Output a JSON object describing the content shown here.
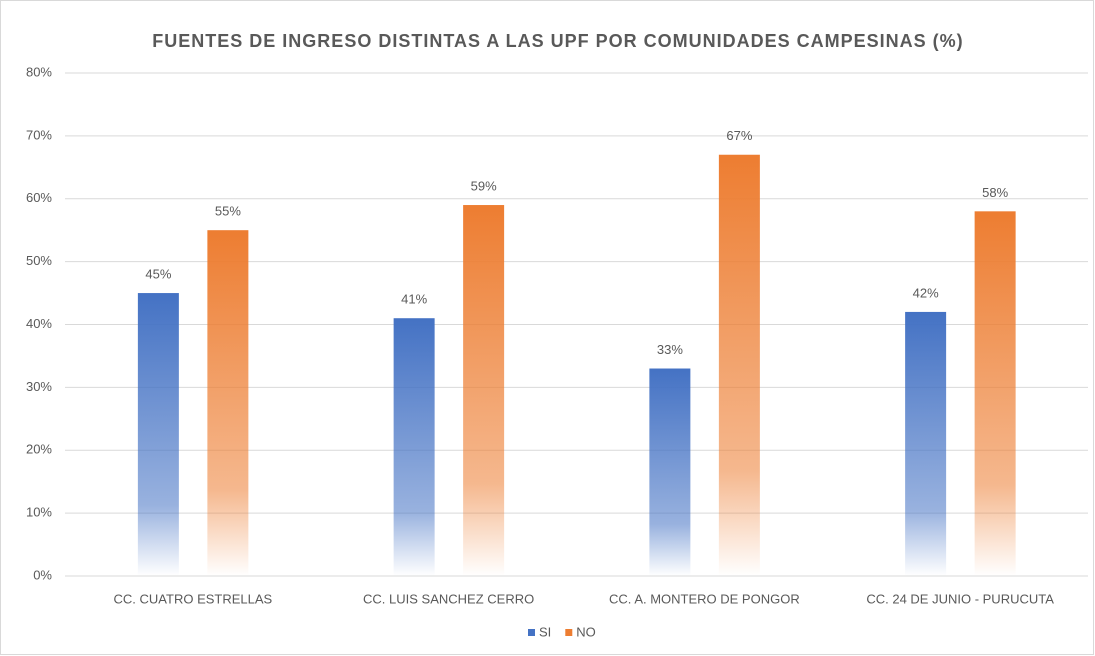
{
  "chart_data": {
    "type": "bar",
    "title": "FUENTES DE INGRESO DISTINTAS A LAS UPF POR COMUNIDADES CAMPESINAS (%)",
    "categories": [
      "CC. CUATRO ESTRELLAS",
      "CC. LUIS SANCHEZ CERRO",
      "CC. A. MONTERO DE PONGOR",
      "CC. 24 DE JUNIO - PURUCUTA"
    ],
    "series": [
      {
        "name": "SI",
        "color": "#4472c4",
        "values": [
          45,
          41,
          33,
          42
        ],
        "value_labels": [
          "45%",
          "41%",
          "33%",
          "42%"
        ]
      },
      {
        "name": "NO",
        "color": "#ed7d31",
        "values": [
          55,
          59,
          67,
          58
        ],
        "value_labels": [
          "55%",
          "59%",
          "67%",
          "58%"
        ]
      }
    ],
    "ylim": [
      0,
      80
    ],
    "yticks": [
      {
        "value": 0,
        "label": "0%"
      },
      {
        "value": 10,
        "label": "10%"
      },
      {
        "value": 20,
        "label": "20%"
      },
      {
        "value": 30,
        "label": "30%"
      },
      {
        "value": 40,
        "label": "40%"
      },
      {
        "value": 50,
        "label": "50%"
      },
      {
        "value": 60,
        "label": "60%"
      },
      {
        "value": 70,
        "label": "70%"
      },
      {
        "value": 80,
        "label": "80%"
      }
    ],
    "grid": true,
    "legend": "bottom"
  }
}
